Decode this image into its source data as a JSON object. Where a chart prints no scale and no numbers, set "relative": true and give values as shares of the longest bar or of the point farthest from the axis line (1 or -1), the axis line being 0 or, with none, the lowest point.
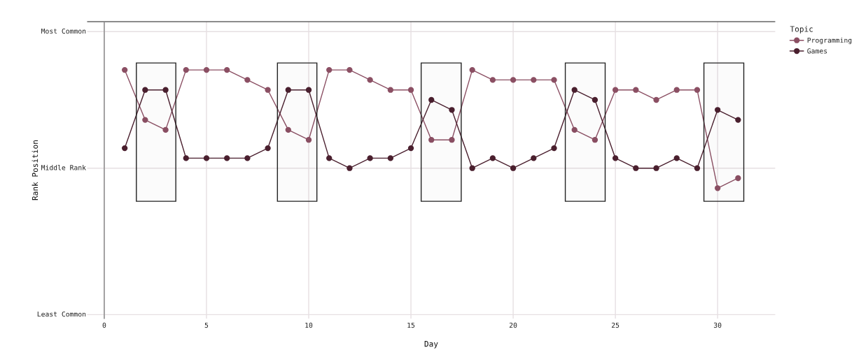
{
  "chart_data": {
    "type": "line",
    "relative": true,
    "xlabel": "Day",
    "legend_title": "Topic",
    "annotations": [
      "Rank Position"
    ],
    "xlim": [
      -0.82,
      32.8
    ],
    "xticks": [
      0,
      5,
      10,
      15,
      20,
      25,
      30
    ],
    "grid": "x",
    "legend": "right",
    "marker": "circle",
    "line_style": "solid",
    "ref_lines": [
      {
        "axis": "y",
        "value": 0,
        "color": "#666666"
      },
      {
        "axis": "x",
        "value": 0,
        "color": "#8c8c8c"
      },
      {
        "axis": "y",
        "value": -0.06,
        "label": "Most Common",
        "color": "#e6dfe2"
      },
      {
        "axis": "y",
        "value": -0.88,
        "label": "Middle Rank",
        "color": "#e6dfe2"
      },
      {
        "axis": "y",
        "value": -1.76,
        "label": "Least Common",
        "color": "#e6dfe2"
      }
    ],
    "bands": [
      {
        "axis": "x",
        "from": 1.57,
        "to": 3.5,
        "color": "#222222"
      },
      {
        "axis": "x",
        "from": 8.47,
        "to": 10.4,
        "color": "#222222"
      },
      {
        "axis": "x",
        "from": 15.5,
        "to": 17.46,
        "color": "#222222"
      },
      {
        "axis": "x",
        "from": 22.55,
        "to": 24.5,
        "color": "#222222"
      },
      {
        "axis": "x",
        "from": 29.33,
        "to": 31.28,
        "color": "#222222"
      }
    ],
    "series": [
      {
        "name": "Programming",
        "color": "#8b4f63",
        "x": [
          1,
          2,
          3,
          4,
          5,
          6,
          7,
          8,
          9,
          10,
          11,
          12,
          13,
          14,
          15,
          16,
          17,
          18,
          19,
          20,
          21,
          22,
          23,
          24,
          25,
          26,
          27,
          28,
          29,
          30,
          31
        ],
        "values": [
          -0.29,
          -0.59,
          -0.65,
          -0.29,
          -0.29,
          -0.29,
          -0.35,
          -0.41,
          -0.65,
          -0.71,
          -0.29,
          -0.29,
          -0.35,
          -0.41,
          -0.41,
          -0.71,
          -0.71,
          -0.29,
          -0.35,
          -0.35,
          -0.35,
          -0.35,
          -0.65,
          -0.71,
          -0.41,
          -0.41,
          -0.47,
          -0.41,
          -0.41,
          -1,
          -0.94
        ]
      },
      {
        "name": "Games",
        "color": "#4a1f2e",
        "x": [
          1,
          2,
          3,
          4,
          5,
          6,
          7,
          8,
          9,
          10,
          11,
          12,
          13,
          14,
          15,
          16,
          17,
          18,
          19,
          20,
          21,
          22,
          23,
          24,
          25,
          26,
          27,
          28,
          29,
          30,
          31
        ],
        "values": [
          -0.76,
          -0.41,
          -0.41,
          -0.82,
          -0.82,
          -0.82,
          -0.82,
          -0.76,
          -0.41,
          -0.41,
          -0.82,
          -0.88,
          -0.82,
          -0.82,
          -0.76,
          -0.47,
          -0.53,
          -0.88,
          -0.82,
          -0.88,
          -0.82,
          -0.76,
          -0.41,
          -0.47,
          -0.82,
          -0.88,
          -0.88,
          -0.82,
          -0.88,
          -0.53,
          -0.59
        ]
      }
    ]
  }
}
